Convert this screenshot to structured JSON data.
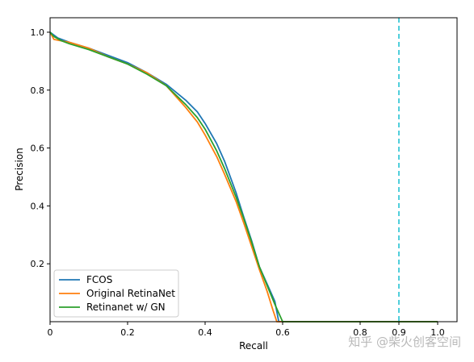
{
  "watermark": "知乎 @柴火创客空间",
  "chart_data": {
    "type": "line",
    "xlabel": "Recall",
    "ylabel": "Precision",
    "xlim": [
      0,
      1.05
    ],
    "ylim": [
      0,
      1.05
    ],
    "x_ticks": [
      0,
      0.2,
      0.4,
      0.6,
      0.8,
      0.9,
      1.0
    ],
    "x_tick_labels": [
      "0",
      "0.2",
      "0.4",
      "0.6",
      "0.8",
      "0.9",
      "1.0"
    ],
    "y_ticks": [
      0.2,
      0.4,
      0.6,
      0.8,
      1.0
    ],
    "y_tick_labels": [
      "0.2",
      "0.4",
      "0.6",
      "0.8",
      "1.0"
    ],
    "grid": false,
    "legend_position": "lower-left",
    "vline": {
      "x": 0.9,
      "color": "#17becf",
      "style": "dashed"
    },
    "series": [
      {
        "name": "FCOS",
        "color": "#1f77b4",
        "points": [
          [
            0,
            1.0
          ],
          [
            0.02,
            0.98
          ],
          [
            0.05,
            0.965
          ],
          [
            0.1,
            0.945
          ],
          [
            0.15,
            0.92
          ],
          [
            0.2,
            0.895
          ],
          [
            0.25,
            0.86
          ],
          [
            0.3,
            0.82
          ],
          [
            0.35,
            0.765
          ],
          [
            0.38,
            0.725
          ],
          [
            0.4,
            0.685
          ],
          [
            0.43,
            0.615
          ],
          [
            0.45,
            0.555
          ],
          [
            0.48,
            0.445
          ],
          [
            0.5,
            0.36
          ],
          [
            0.52,
            0.28
          ],
          [
            0.54,
            0.19
          ],
          [
            0.56,
            0.13
          ],
          [
            0.58,
            0.07
          ],
          [
            0.59,
            0.0
          ],
          [
            1.0,
            0.0
          ]
        ]
      },
      {
        "name": "Original RetinaNet",
        "color": "#ff7f0e",
        "points": [
          [
            0,
            1.0
          ],
          [
            0.01,
            0.975
          ],
          [
            0.03,
            0.97
          ],
          [
            0.05,
            0.965
          ],
          [
            0.1,
            0.945
          ],
          [
            0.15,
            0.915
          ],
          [
            0.2,
            0.89
          ],
          [
            0.25,
            0.86
          ],
          [
            0.3,
            0.815
          ],
          [
            0.35,
            0.74
          ],
          [
            0.38,
            0.69
          ],
          [
            0.4,
            0.645
          ],
          [
            0.43,
            0.57
          ],
          [
            0.45,
            0.51
          ],
          [
            0.48,
            0.415
          ],
          [
            0.5,
            0.34
          ],
          [
            0.52,
            0.26
          ],
          [
            0.54,
            0.18
          ],
          [
            0.56,
            0.105
          ],
          [
            0.575,
            0.04
          ],
          [
            0.585,
            0.0
          ],
          [
            1.0,
            0.0
          ]
        ]
      },
      {
        "name": "Retinanet w/ GN",
        "color": "#2ca02c",
        "points": [
          [
            0,
            1.0
          ],
          [
            0.01,
            0.985
          ],
          [
            0.03,
            0.97
          ],
          [
            0.05,
            0.96
          ],
          [
            0.1,
            0.94
          ],
          [
            0.15,
            0.915
          ],
          [
            0.2,
            0.89
          ],
          [
            0.25,
            0.855
          ],
          [
            0.3,
            0.815
          ],
          [
            0.35,
            0.75
          ],
          [
            0.38,
            0.705
          ],
          [
            0.4,
            0.665
          ],
          [
            0.43,
            0.59
          ],
          [
            0.45,
            0.53
          ],
          [
            0.48,
            0.43
          ],
          [
            0.5,
            0.355
          ],
          [
            0.52,
            0.275
          ],
          [
            0.54,
            0.19
          ],
          [
            0.56,
            0.125
          ],
          [
            0.58,
            0.06
          ],
          [
            0.6,
            0.0
          ],
          [
            1.0,
            0.0
          ]
        ]
      }
    ]
  }
}
